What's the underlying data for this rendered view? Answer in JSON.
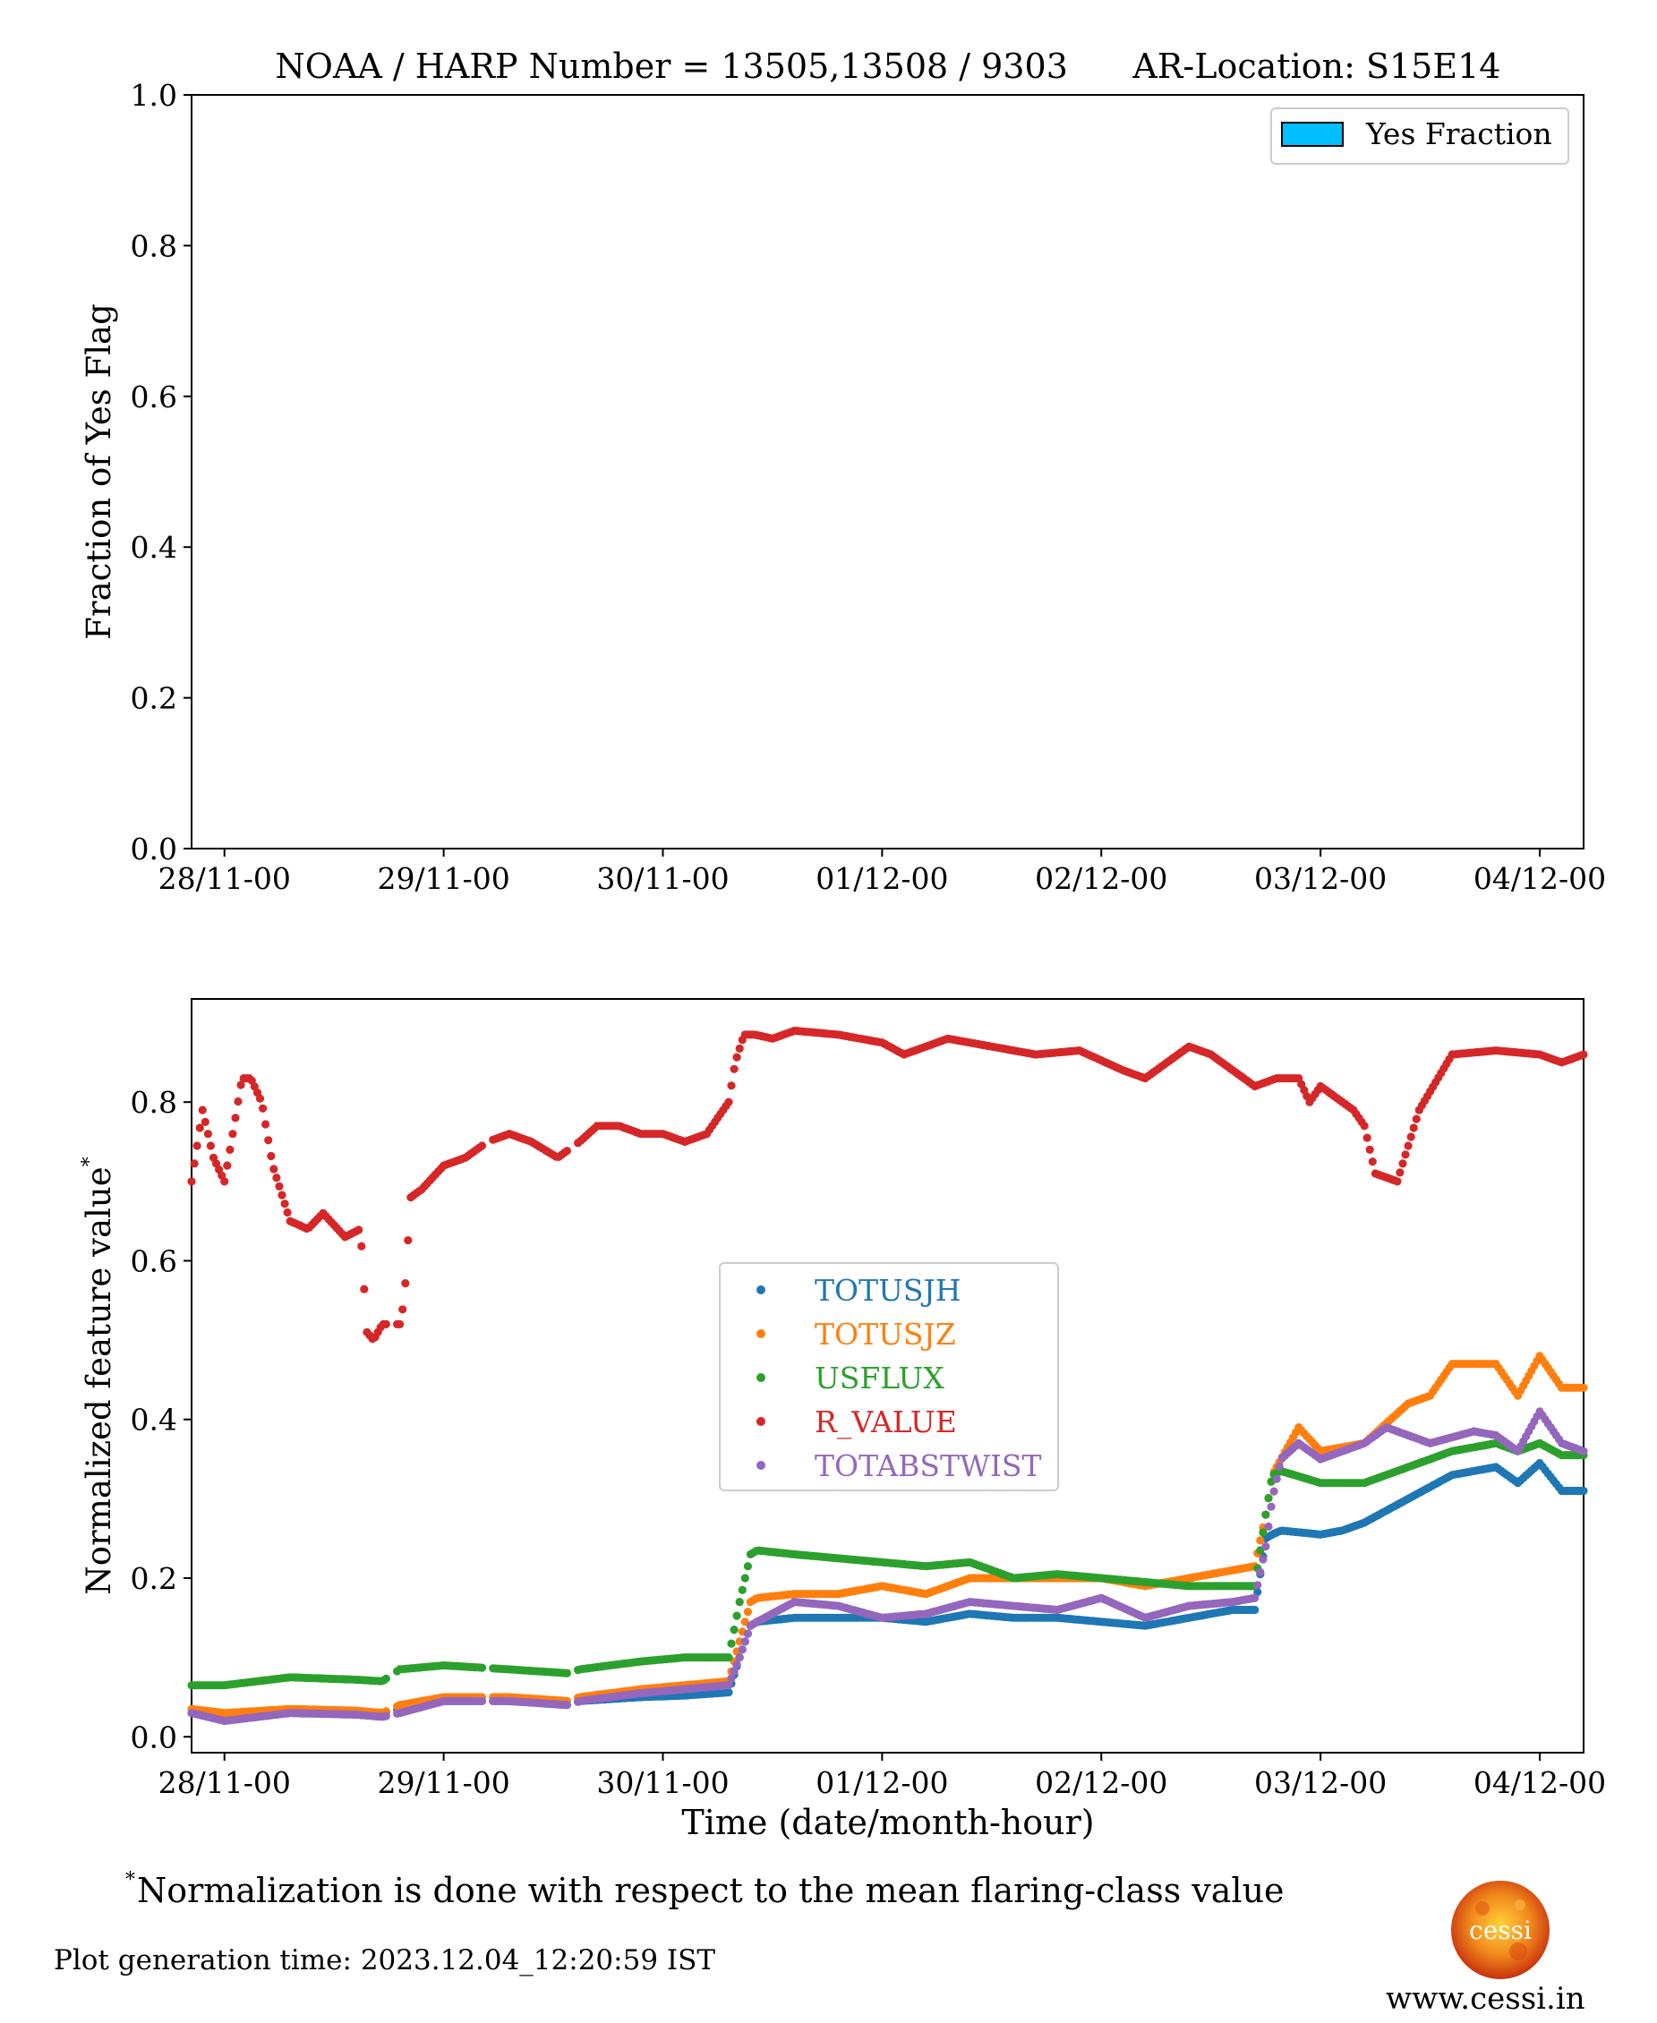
{
  "title": "NOAA / HARP Number = 13505,13508 / 9303      AR-Location: S15E14",
  "top_panel": {
    "ylabel": "Fraction of Yes Flag",
    "legend_label": "Yes Fraction",
    "legend_color": "#00bfff",
    "yticks": [
      "0.0",
      "0.2",
      "0.4",
      "0.6",
      "0.8",
      "1.0"
    ]
  },
  "bottom_panel": {
    "ylabel": "Normalized feature value",
    "ylabel_mark": "*",
    "xlabel": "Time (date/month-hour)",
    "yticks": [
      "0.0",
      "0.2",
      "0.4",
      "0.6",
      "0.8"
    ]
  },
  "xticks": [
    "28/11-00",
    "29/11-00",
    "30/11-00",
    "01/12-00",
    "02/12-00",
    "03/12-00",
    "04/12-00"
  ],
  "footnote_mark": "*",
  "footnote": "Normalization is done with respect to the mean flaring-class value",
  "generation_time": "Plot generation time: 2023.12.04_12:20:59 IST",
  "logo_text": "cessi",
  "logo_url": "www.cessi.in",
  "chart_data": [
    {
      "type": "bar",
      "title": "NOAA / HARP Number = 13505,13508 / 9303      AR-Location: S15E14",
      "xlabel": "",
      "ylabel": "Fraction of Yes Flag",
      "ylim": [
        0,
        1.0
      ],
      "x_axis": "days from 28/11-00",
      "xlim": [
        -0.15,
        6.2
      ],
      "series": [
        {
          "name": "Yes Fraction",
          "color": "#00bfff",
          "values": []
        }
      ],
      "legend": "top-right",
      "grid": false
    },
    {
      "type": "scatter",
      "xlabel": "Time (date/month-hour)",
      "ylabel": "Normalized feature value",
      "ylim": [
        -0.02,
        0.93
      ],
      "x_axis": "days from 28/11-00",
      "xlim": [
        -0.15,
        6.2
      ],
      "legend": "center",
      "grid": false,
      "gaps": [
        [
          0.74,
          0.78
        ],
        [
          1.18,
          1.22
        ],
        [
          1.57,
          1.61
        ]
      ],
      "series": [
        {
          "name": "TOTUSJH",
          "color": "#1f77b4",
          "x": [
            -0.15,
            0.0,
            0.3,
            0.6,
            0.72,
            0.8,
            1.0,
            1.3,
            1.57,
            1.62,
            1.9,
            2.1,
            2.3,
            2.35,
            2.4,
            2.43,
            2.6,
            2.8,
            3.0,
            3.2,
            3.4,
            3.6,
            3.8,
            4.0,
            4.2,
            4.4,
            4.6,
            4.7,
            4.75,
            4.78,
            4.82,
            5.0,
            5.1,
            5.2,
            5.4,
            5.6,
            5.8,
            5.9,
            6.0,
            6.1,
            6.2
          ],
          "y": [
            0.03,
            0.025,
            0.03,
            0.028,
            0.03,
            0.035,
            0.045,
            0.045,
            0.04,
            0.045,
            0.05,
            0.052,
            0.056,
            0.1,
            0.14,
            0.145,
            0.15,
            0.15,
            0.15,
            0.145,
            0.155,
            0.15,
            0.15,
            0.145,
            0.14,
            0.15,
            0.16,
            0.16,
            0.25,
            0.255,
            0.26,
            0.255,
            0.26,
            0.27,
            0.3,
            0.33,
            0.34,
            0.32,
            0.345,
            0.31,
            0.31
          ]
        },
        {
          "name": "TOTUSJZ",
          "color": "#ff7f0e",
          "x": [
            -0.15,
            0.0,
            0.3,
            0.6,
            0.72,
            0.8,
            1.0,
            1.3,
            1.57,
            1.62,
            1.9,
            2.1,
            2.3,
            2.35,
            2.4,
            2.43,
            2.6,
            2.8,
            3.0,
            3.2,
            3.4,
            3.6,
            3.8,
            4.0,
            4.2,
            4.4,
            4.6,
            4.7,
            4.75,
            4.78,
            4.82,
            4.9,
            5.0,
            5.2,
            5.4,
            5.5,
            5.6,
            5.8,
            5.9,
            6.0,
            6.1,
            6.2
          ],
          "y": [
            0.035,
            0.03,
            0.035,
            0.033,
            0.03,
            0.04,
            0.05,
            0.05,
            0.045,
            0.05,
            0.06,
            0.065,
            0.07,
            0.12,
            0.17,
            0.175,
            0.18,
            0.18,
            0.19,
            0.18,
            0.2,
            0.2,
            0.2,
            0.2,
            0.19,
            0.2,
            0.21,
            0.215,
            0.28,
            0.33,
            0.35,
            0.39,
            0.36,
            0.37,
            0.42,
            0.43,
            0.47,
            0.47,
            0.43,
            0.48,
            0.44,
            0.44
          ]
        },
        {
          "name": "USFLUX",
          "color": "#2ca02c",
          "x": [
            -0.15,
            0.0,
            0.3,
            0.6,
            0.72,
            0.8,
            1.0,
            1.3,
            1.57,
            1.62,
            1.9,
            2.1,
            2.3,
            2.35,
            2.4,
            2.43,
            2.6,
            2.8,
            3.0,
            3.2,
            3.4,
            3.6,
            3.8,
            4.0,
            4.2,
            4.4,
            4.6,
            4.7,
            4.75,
            4.78,
            4.82,
            5.0,
            5.2,
            5.4,
            5.6,
            5.8,
            5.9,
            6.0,
            6.1,
            6.2
          ],
          "y": [
            0.065,
            0.065,
            0.075,
            0.072,
            0.07,
            0.085,
            0.09,
            0.085,
            0.08,
            0.085,
            0.095,
            0.1,
            0.1,
            0.17,
            0.23,
            0.235,
            0.23,
            0.225,
            0.22,
            0.215,
            0.22,
            0.2,
            0.205,
            0.2,
            0.195,
            0.19,
            0.19,
            0.19,
            0.28,
            0.33,
            0.335,
            0.32,
            0.32,
            0.34,
            0.36,
            0.37,
            0.36,
            0.37,
            0.355,
            0.355
          ]
        },
        {
          "name": "R_VALUE",
          "color": "#d62728",
          "x": [
            -0.15,
            -0.1,
            -0.05,
            0.0,
            0.05,
            0.08,
            0.12,
            0.17,
            0.22,
            0.3,
            0.38,
            0.45,
            0.55,
            0.62,
            0.65,
            0.68,
            0.72,
            0.8,
            0.82,
            0.85,
            0.9,
            1.0,
            1.1,
            1.2,
            1.3,
            1.4,
            1.52,
            1.57,
            1.62,
            1.7,
            1.8,
            1.9,
            2.0,
            2.1,
            2.2,
            2.3,
            2.33,
            2.37,
            2.42,
            2.5,
            2.6,
            2.8,
            3.0,
            3.1,
            3.2,
            3.3,
            3.5,
            3.7,
            3.9,
            4.1,
            4.2,
            4.3,
            4.4,
            4.5,
            4.6,
            4.7,
            4.8,
            4.9,
            4.95,
            5.0,
            5.1,
            5.15,
            5.2,
            5.25,
            5.35,
            5.45,
            5.6,
            5.8,
            6.0,
            6.1,
            6.2
          ],
          "y": [
            0.7,
            0.79,
            0.73,
            0.7,
            0.78,
            0.83,
            0.83,
            0.8,
            0.72,
            0.65,
            0.64,
            0.66,
            0.63,
            0.64,
            0.51,
            0.5,
            0.52,
            0.52,
            0.55,
            0.68,
            0.69,
            0.72,
            0.73,
            0.75,
            0.76,
            0.75,
            0.73,
            0.74,
            0.75,
            0.77,
            0.77,
            0.76,
            0.76,
            0.75,
            0.76,
            0.8,
            0.85,
            0.885,
            0.885,
            0.88,
            0.89,
            0.885,
            0.875,
            0.86,
            0.87,
            0.88,
            0.87,
            0.86,
            0.865,
            0.84,
            0.83,
            0.85,
            0.87,
            0.86,
            0.84,
            0.82,
            0.83,
            0.83,
            0.8,
            0.82,
            0.8,
            0.79,
            0.77,
            0.71,
            0.7,
            0.79,
            0.86,
            0.865,
            0.86,
            0.85,
            0.86
          ]
        },
        {
          "name": "TOTABSTWIST",
          "color": "#9467bd",
          "x": [
            -0.15,
            0.0,
            0.3,
            0.6,
            0.72,
            0.8,
            1.0,
            1.3,
            1.57,
            1.62,
            1.9,
            2.1,
            2.3,
            2.35,
            2.4,
            2.43,
            2.6,
            2.8,
            3.0,
            3.2,
            3.4,
            3.6,
            3.8,
            4.0,
            4.2,
            4.4,
            4.6,
            4.7,
            4.75,
            4.78,
            4.82,
            4.9,
            5.0,
            5.2,
            5.3,
            5.5,
            5.7,
            5.8,
            5.9,
            6.0,
            6.1,
            6.2
          ],
          "y": [
            0.03,
            0.02,
            0.03,
            0.028,
            0.025,
            0.03,
            0.045,
            0.045,
            0.04,
            0.045,
            0.055,
            0.06,
            0.065,
            0.1,
            0.14,
            0.145,
            0.17,
            0.165,
            0.15,
            0.155,
            0.17,
            0.165,
            0.16,
            0.175,
            0.15,
            0.165,
            0.17,
            0.175,
            0.24,
            0.3,
            0.35,
            0.37,
            0.35,
            0.37,
            0.39,
            0.37,
            0.385,
            0.38,
            0.36,
            0.41,
            0.37,
            0.36
          ]
        }
      ]
    }
  ]
}
